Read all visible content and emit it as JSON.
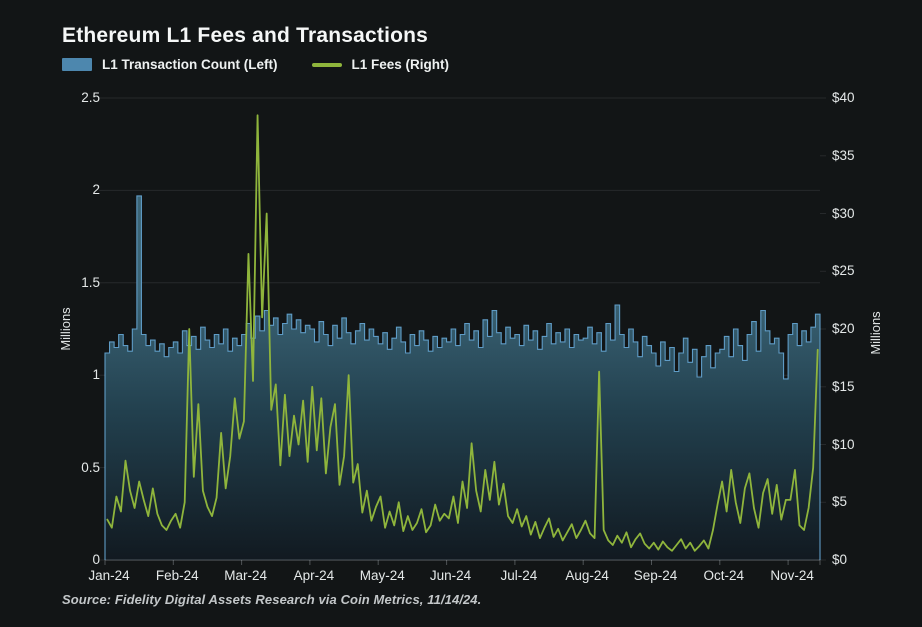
{
  "colors": {
    "background": "#121516",
    "bar_fill_top": "#3c6577",
    "bar_fill_mid": "#22404e",
    "bar_fill_bottom": "#111920",
    "bar_stroke": "#5f9cc6",
    "bar_legend": "#4d87ae",
    "fee_line": "#8fb53c",
    "grid": "rgba(220,230,235,0.10)",
    "axis_line": "rgba(220,230,235,0.30)"
  },
  "header": {
    "title": "Ethereum L1 Fees and Transactions"
  },
  "legend": {
    "items": [
      {
        "label": "L1 Transaction Count (Left)",
        "color": "#4d87ae",
        "swatch": "bar"
      },
      {
        "label": "L1 Fees (Right)",
        "color": "#8fb53c",
        "swatch": "line"
      }
    ]
  },
  "footer": {
    "source": "Source: Fidelity Digital Assets Research via Coin Metrics, 11/14/24."
  },
  "chart_data": {
    "type": "combo",
    "title": "Ethereum L1 Fees and Transactions",
    "grid": true,
    "legend_position": "top-left",
    "x_axis": {
      "tick_labels": [
        "Jan-24",
        "Feb-24",
        "Mar-24",
        "Apr-24",
        "May-24",
        "Jun-24",
        "Jul-24",
        "Aug-24",
        "Sep-24",
        "Oct-24",
        "Nov-24"
      ],
      "tick_indices": [
        0,
        15,
        30,
        45,
        60,
        75,
        90,
        105,
        120,
        135,
        150
      ]
    },
    "left_axis": {
      "label": "Millions",
      "tick_labels": [
        "0",
        "0.5",
        "1",
        "1.5",
        "2",
        "2.5"
      ],
      "tick_values": [
        0,
        0.5,
        1,
        1.5,
        2,
        2.5
      ],
      "range": [
        0,
        2.5
      ]
    },
    "right_axis": {
      "label": "Millions",
      "tick_labels": [
        "$0",
        "$5",
        "$10",
        "$15",
        "$20",
        "$25",
        "$30",
        "$35",
        "$40"
      ],
      "tick_values": [
        0,
        5,
        10,
        15,
        20,
        25,
        30,
        35,
        40
      ],
      "range": [
        0,
        40
      ]
    },
    "series": [
      {
        "name": "L1 Transaction Count (Left)",
        "type": "bar",
        "axis": "left",
        "unit": "Millions",
        "color": "#5f9cc6",
        "values": [
          1.12,
          1.18,
          1.15,
          1.22,
          1.16,
          1.13,
          1.25,
          1.97,
          1.22,
          1.16,
          1.19,
          1.13,
          1.17,
          1.1,
          1.15,
          1.18,
          1.12,
          1.24,
          1.16,
          1.21,
          1.14,
          1.26,
          1.19,
          1.15,
          1.22,
          1.17,
          1.25,
          1.13,
          1.2,
          1.16,
          1.22,
          1.28,
          1.2,
          1.32,
          1.24,
          1.35,
          1.27,
          1.31,
          1.22,
          1.28,
          1.33,
          1.25,
          1.3,
          1.23,
          1.27,
          1.25,
          1.18,
          1.29,
          1.22,
          1.16,
          1.27,
          1.2,
          1.31,
          1.23,
          1.17,
          1.24,
          1.28,
          1.19,
          1.25,
          1.21,
          1.17,
          1.23,
          1.14,
          1.2,
          1.26,
          1.18,
          1.12,
          1.22,
          1.16,
          1.24,
          1.19,
          1.13,
          1.21,
          1.15,
          1.2,
          1.18,
          1.25,
          1.16,
          1.22,
          1.28,
          1.19,
          1.24,
          1.15,
          1.3,
          1.21,
          1.35,
          1.23,
          1.17,
          1.26,
          1.2,
          1.22,
          1.16,
          1.27,
          1.19,
          1.24,
          1.14,
          1.21,
          1.28,
          1.17,
          1.23,
          1.18,
          1.25,
          1.15,
          1.22,
          1.19,
          1.2,
          1.26,
          1.17,
          1.23,
          1.13,
          1.28,
          1.19,
          1.38,
          1.22,
          1.15,
          1.25,
          1.18,
          1.1,
          1.21,
          1.16,
          1.12,
          1.05,
          1.18,
          1.08,
          1.15,
          1.02,
          1.12,
          1.2,
          1.07,
          1.14,
          0.99,
          1.1,
          1.16,
          1.04,
          1.12,
          1.14,
          1.21,
          1.1,
          1.25,
          1.16,
          1.08,
          1.22,
          1.29,
          1.13,
          1.35,
          1.24,
          1.17,
          1.2,
          1.12,
          0.98,
          1.22,
          1.28,
          1.16,
          1.24,
          1.18,
          1.26,
          1.33
        ]
      },
      {
        "name": "L1 Fees (Right)",
        "type": "line",
        "axis": "right",
        "unit": "Millions",
        "color": "#8fb53c",
        "values": [
          3.5,
          2.8,
          5.5,
          4.2,
          8.6,
          6.0,
          4.5,
          6.8,
          5.2,
          3.8,
          6.2,
          4.0,
          3.0,
          2.6,
          3.4,
          4.0,
          2.8,
          5.0,
          20.0,
          7.2,
          13.5,
          6.0,
          4.6,
          3.8,
          5.4,
          11.0,
          6.2,
          9.0,
          14.0,
          10.5,
          12.0,
          26.5,
          15.5,
          38.5,
          21.0,
          30.0,
          13.0,
          15.2,
          8.2,
          14.3,
          9.0,
          12.5,
          10.0,
          13.8,
          8.5,
          15.0,
          9.5,
          14.0,
          7.5,
          11.5,
          13.5,
          6.5,
          9.0,
          16.0,
          6.7,
          8.3,
          4.1,
          6.0,
          3.4,
          4.6,
          5.5,
          2.8,
          4.2,
          3.0,
          5.0,
          2.5,
          3.8,
          2.6,
          3.2,
          4.4,
          2.4,
          3.0,
          4.8,
          3.4,
          4.0,
          3.6,
          5.5,
          3.2,
          6.8,
          4.5,
          10.1,
          6.0,
          4.2,
          7.8,
          5.2,
          8.5,
          4.8,
          6.6,
          3.8,
          3.2,
          4.4,
          2.9,
          3.8,
          2.2,
          3.3,
          1.9,
          2.8,
          3.6,
          2.0,
          2.7,
          1.7,
          2.4,
          3.1,
          1.9,
          2.6,
          3.4,
          2.3,
          1.9,
          16.3,
          2.6,
          1.7,
          1.3,
          2.1,
          1.5,
          2.4,
          1.1,
          1.8,
          2.3,
          1.4,
          1.0,
          1.5,
          0.9,
          1.6,
          1.1,
          0.8,
          1.3,
          1.8,
          1.0,
          1.5,
          0.8,
          1.2,
          1.7,
          1.0,
          2.6,
          4.8,
          6.8,
          4.2,
          7.8,
          5.0,
          3.2,
          6.2,
          7.5,
          4.5,
          2.8,
          5.8,
          7.0,
          4.0,
          6.5,
          3.5,
          5.2,
          5.2,
          7.8,
          3.0,
          2.6,
          4.5,
          8.0,
          18.2
        ]
      }
    ]
  }
}
